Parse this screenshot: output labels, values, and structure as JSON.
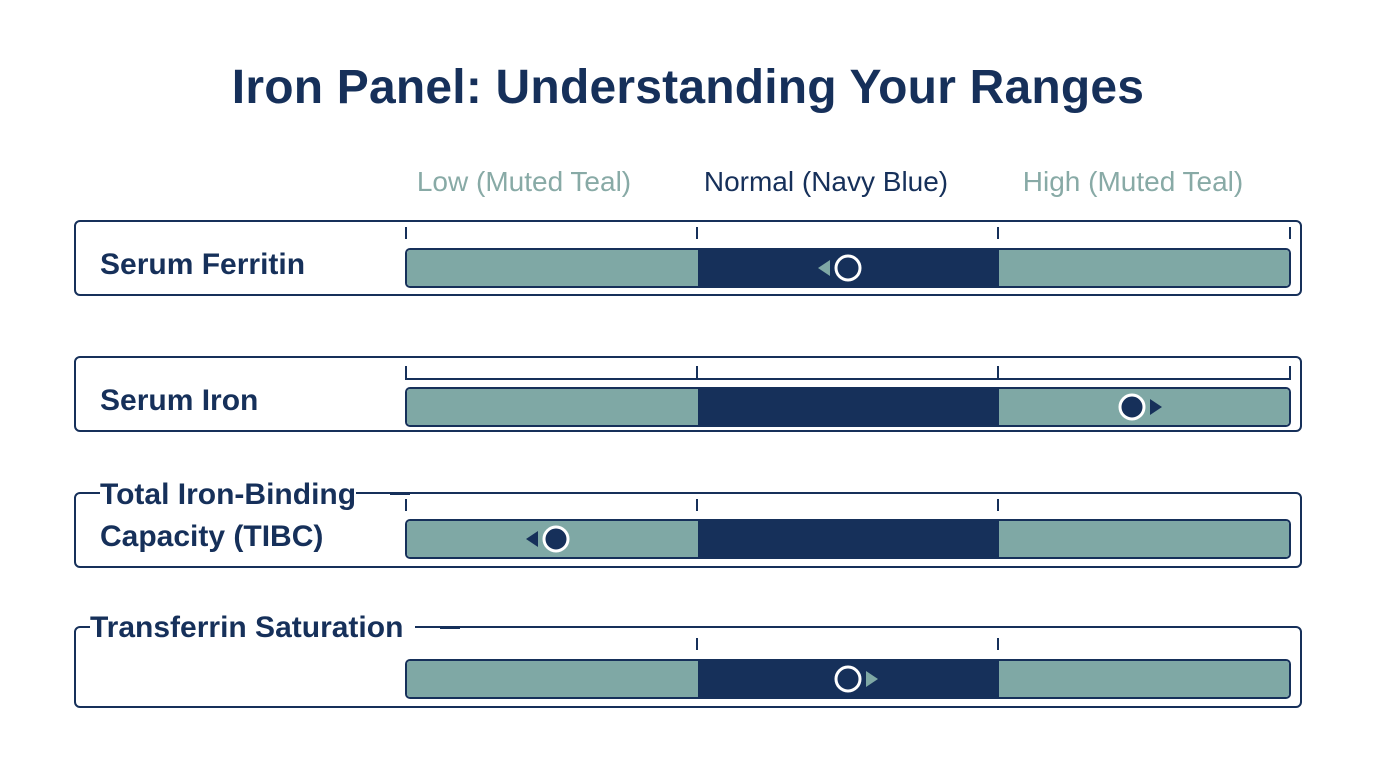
{
  "title": "Iron Panel: Understanding Your Ranges",
  "range_labels": {
    "low": "Low (Muted Teal)",
    "normal": "Normal (Navy Blue)",
    "high": "High (Muted Teal)"
  },
  "colors": {
    "navy": "#16305a",
    "teal": "#7fa8a5",
    "low_label": "#88aaa6",
    "normal_label": "#16305a",
    "high_label": "#88aaa6"
  },
  "markers": [
    {
      "name": "Serum Ferritin",
      "zone": "normal",
      "position_fraction": 0.5,
      "direction": "left",
      "style": "hollow"
    },
    {
      "name": "Serum Iron",
      "zone": "high",
      "position_fraction": 0.82,
      "direction": "right",
      "style": "filled"
    },
    {
      "name": "Total Iron-Binding Capacity (TIBC)",
      "zone": "low",
      "position_fraction": 0.17,
      "direction": "left",
      "style": "filled"
    },
    {
      "name": "Transferrin Saturation",
      "zone": "normal",
      "position_fraction": 0.5,
      "direction": "right",
      "style": "hollow"
    }
  ],
  "rows": [
    {
      "label": "Serum Ferritin"
    },
    {
      "label": "Serum Iron"
    },
    {
      "label_line1": "Total Iron-Binding",
      "label_line2": "Capacity (TIBC)"
    },
    {
      "label": "Transferrin Saturation"
    }
  ]
}
